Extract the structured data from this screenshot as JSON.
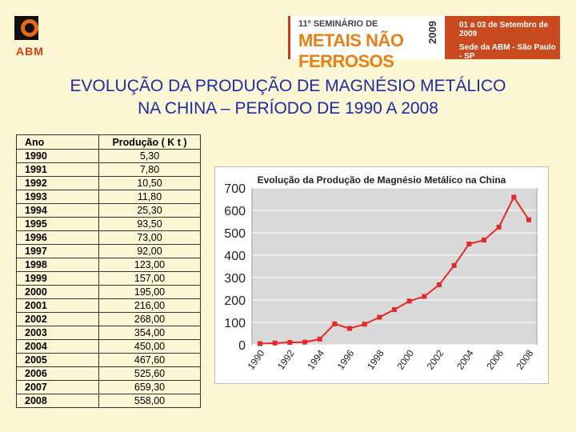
{
  "header": {
    "logo_text": "ABM",
    "banner": {
      "seminar": "11º SEMINÁRIO DE",
      "name": "METAIS NÃO FERROSOS",
      "year": "2009",
      "dates": "01 a 03 de Setembro de 2009",
      "venue": "Sede da ABM - São Paulo - SP"
    }
  },
  "page": {
    "title_line1": "EVOLUÇÃO DA PRODUÇÃO DE MAGNÉSIO METÁLICO",
    "title_line2": "NA CHINA – PERÍODO DE 1990 A 2008"
  },
  "table": {
    "headers": [
      "Ano",
      "Produção ( K t )"
    ],
    "rows": [
      [
        "1990",
        "5,30"
      ],
      [
        "1991",
        "7,80"
      ],
      [
        "1992",
        "10,50"
      ],
      [
        "1993",
        "11,80"
      ],
      [
        "1994",
        "25,30"
      ],
      [
        "1995",
        "93,50"
      ],
      [
        "1996",
        "73,00"
      ],
      [
        "1997",
        "92,00"
      ],
      [
        "1998",
        "123,00"
      ],
      [
        "1999",
        "157,00"
      ],
      [
        "2000",
        "195,00"
      ],
      [
        "2001",
        "216,00"
      ],
      [
        "2002",
        "268,00"
      ],
      [
        "2003",
        "354,00"
      ],
      [
        "2004",
        "450,00"
      ],
      [
        "2005",
        "467,60"
      ],
      [
        "2006",
        "525,60"
      ],
      [
        "2007",
        "659,30"
      ],
      [
        "2008",
        "558,00"
      ]
    ]
  },
  "chart_data": {
    "type": "line",
    "title": "Evolução da Produção de Magnésio Metálico na China",
    "xlabel": "",
    "ylabel": "",
    "x": [
      1990,
      1991,
      1992,
      1993,
      1994,
      1995,
      1996,
      1997,
      1998,
      1999,
      2000,
      2001,
      2002,
      2003,
      2004,
      2005,
      2006,
      2007,
      2008
    ],
    "series": [
      {
        "values": [
          5.3,
          7.8,
          10.5,
          11.8,
          25.3,
          93.5,
          73,
          92,
          123,
          157,
          195,
          216,
          268,
          354,
          450,
          467.6,
          525.6,
          659.3,
          558
        ]
      }
    ],
    "ylim": [
      0,
      700
    ],
    "yticks": [
      0,
      100,
      200,
      300,
      400,
      500,
      600,
      700
    ],
    "xtick_labels": [
      "1990",
      "1992",
      "1994",
      "1996",
      "1998",
      "2000",
      "2002",
      "2004",
      "2006",
      "2008"
    ],
    "grid": true,
    "legend": "none",
    "line_color": "#e32a2a",
    "panel_color": "#d9d9d9"
  }
}
